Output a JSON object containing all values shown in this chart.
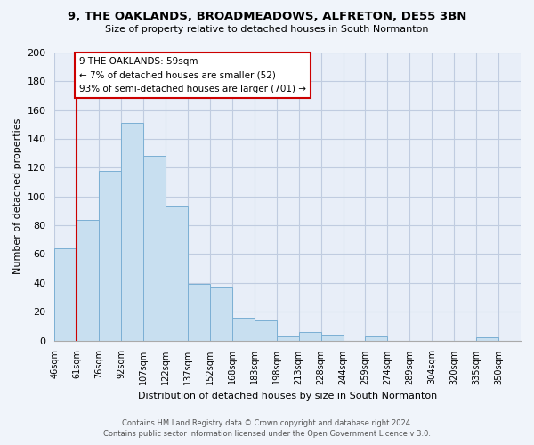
{
  "title": "9, THE OAKLANDS, BROADMEADOWS, ALFRETON, DE55 3BN",
  "subtitle": "Size of property relative to detached houses in South Normanton",
  "xlabel": "Distribution of detached houses by size in South Normanton",
  "ylabel": "Number of detached properties",
  "footer_line1": "Contains HM Land Registry data © Crown copyright and database right 2024.",
  "footer_line2": "Contains public sector information licensed under the Open Government Licence v 3.0.",
  "bin_labels": [
    "46sqm",
    "61sqm",
    "76sqm",
    "92sqm",
    "107sqm",
    "122sqm",
    "137sqm",
    "152sqm",
    "168sqm",
    "183sqm",
    "198sqm",
    "213sqm",
    "228sqm",
    "244sqm",
    "259sqm",
    "274sqm",
    "289sqm",
    "304sqm",
    "320sqm",
    "335sqm",
    "350sqm"
  ],
  "bar_values": [
    64,
    84,
    118,
    151,
    128,
    93,
    39,
    37,
    16,
    14,
    3,
    6,
    4,
    0,
    3,
    0,
    0,
    0,
    0,
    2,
    0
  ],
  "bar_color": "#c8dff0",
  "bar_edge_color": "#7bafd4",
  "highlight_line_color": "#cc0000",
  "annotation_text_line1": "9 THE OAKLANDS: 59sqm",
  "annotation_text_line2": "← 7% of detached houses are smaller (52)",
  "annotation_text_line3": "93% of semi-detached houses are larger (701) →",
  "annotation_box_edge_color": "#cc0000",
  "ylim": [
    0,
    200
  ],
  "yticks": [
    0,
    20,
    40,
    60,
    80,
    100,
    120,
    140,
    160,
    180,
    200
  ],
  "background_color": "#f0f4fa",
  "plot_bg_color": "#e8eef8",
  "grid_color": "#c0cce0"
}
